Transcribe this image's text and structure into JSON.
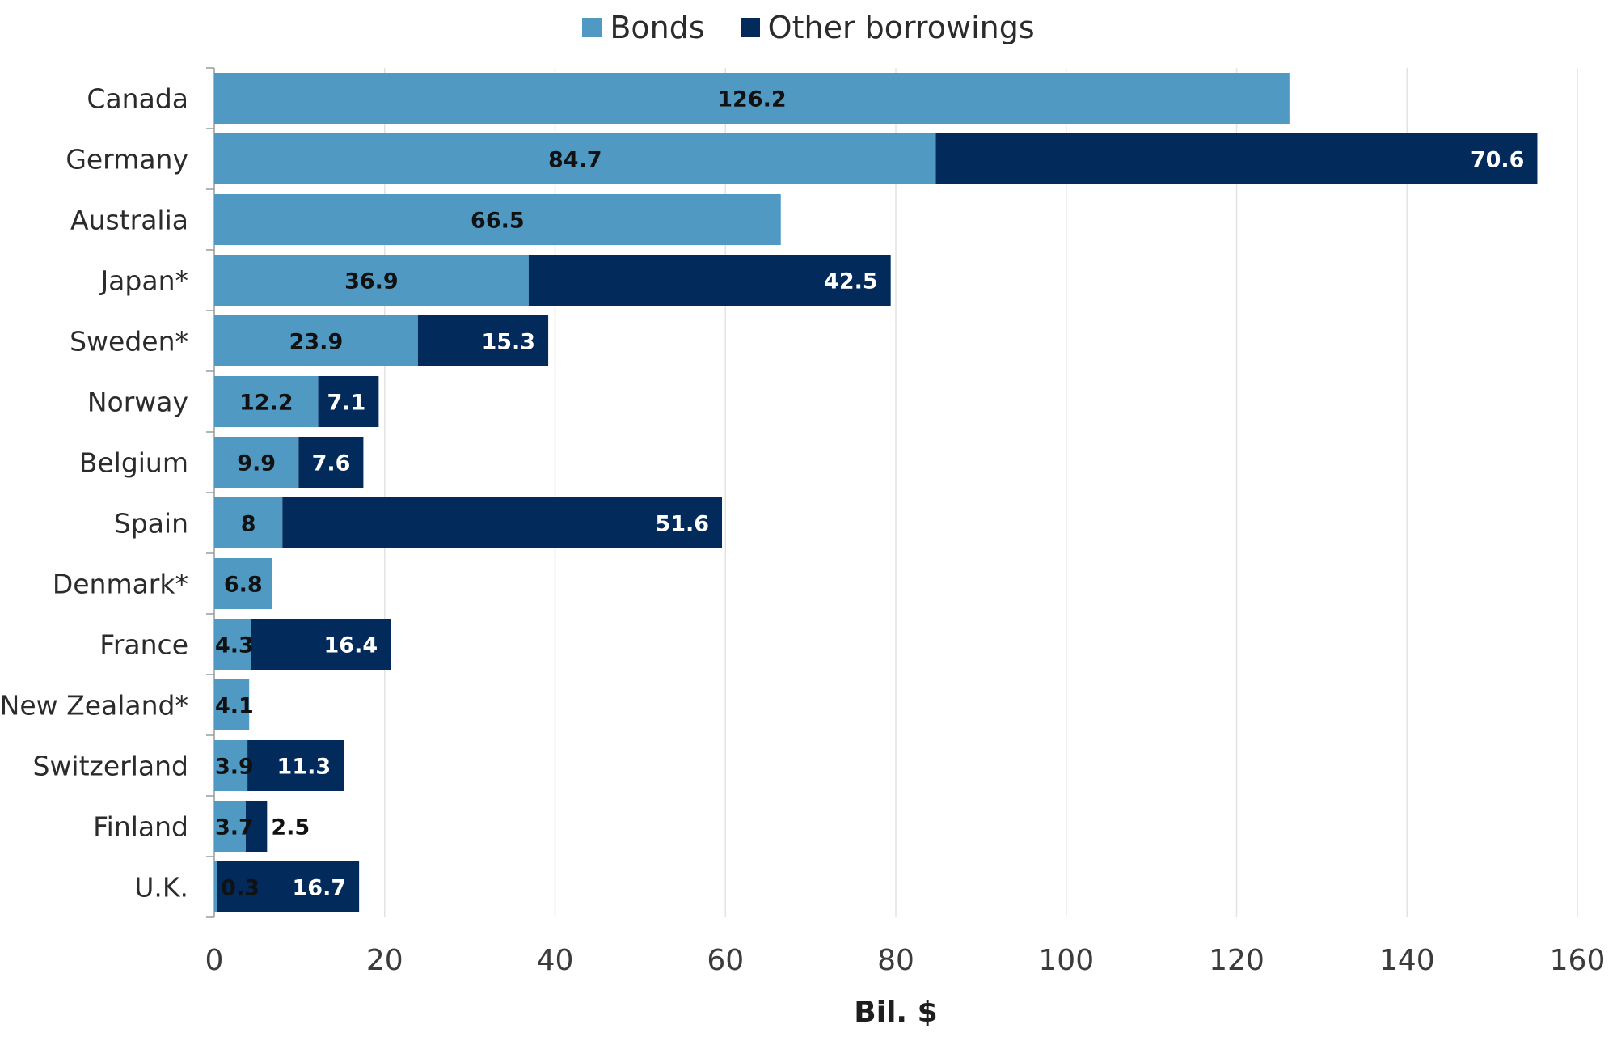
{
  "chart_data": {
    "type": "bar",
    "orientation": "horizontal",
    "stacked": true,
    "categories": [
      "Canada",
      "Germany",
      "Australia",
      "Japan*",
      "Sweden*",
      "Norway",
      "Belgium",
      "Spain",
      "Denmark*",
      "France",
      "New Zealand*",
      "Switzerland",
      "Finland",
      "U.K."
    ],
    "series": [
      {
        "name": "Bonds",
        "color": "#4F99C3",
        "values": [
          126.2,
          84.7,
          66.5,
          36.9,
          23.9,
          12.2,
          9.9,
          8,
          6.8,
          4.3,
          4.1,
          3.9,
          3.7,
          0.3
        ]
      },
      {
        "name": "Other borrowings",
        "color": "#022B5C",
        "values": [
          null,
          70.6,
          null,
          42.5,
          15.3,
          7.1,
          7.6,
          51.6,
          null,
          16.4,
          null,
          11.3,
          2.5,
          16.7
        ]
      }
    ],
    "xlabel": "Bil. $",
    "xlim": [
      0,
      160
    ],
    "xticks": [
      0,
      20,
      40,
      60,
      80,
      100,
      120,
      140,
      160
    ],
    "grid": "vertical",
    "legend": "top-center"
  }
}
